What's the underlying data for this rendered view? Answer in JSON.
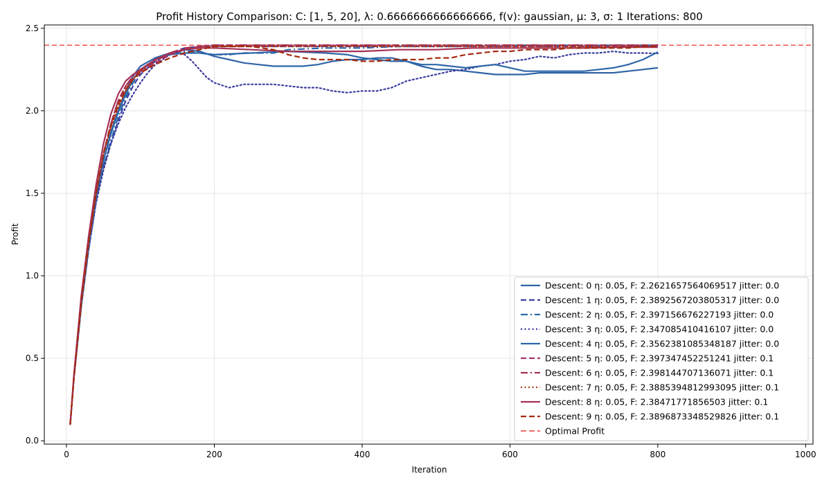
{
  "chart_data": {
    "type": "line",
    "title": "Profit History Comparison: C: [1, 5, 20], λ: 0.6666666666666666, f(v): gaussian, μ: 3, σ: 1 Iterations: 800",
    "xlabel": "Iteration",
    "ylabel": "Profit",
    "xlim": [
      -30,
      1010
    ],
    "ylim": [
      -0.02,
      2.52
    ],
    "xticks": [
      0,
      200,
      400,
      600,
      800,
      1000
    ],
    "yticks": [
      0.0,
      0.5,
      1.0,
      1.5,
      2.0,
      2.5
    ],
    "xtick_labels": [
      "0",
      "200",
      "400",
      "600",
      "800",
      "1000"
    ],
    "ytick_labels": [
      "0.0",
      "0.5",
      "1.0",
      "1.5",
      "2.0",
      "2.5"
    ],
    "grid": true,
    "legend_position": "lower-right",
    "reference_line": {
      "label": "Optimal Profit",
      "y": 2.397,
      "color": "#e8413b",
      "style": "dashed"
    },
    "series": [
      {
        "name": "Descent: 0 η: 0.05, F: 2.2621657564069517 jitter: 0.0",
        "color": "#2f63a8",
        "style": "solid",
        "x": [
          5,
          10,
          20,
          30,
          40,
          50,
          60,
          70,
          80,
          90,
          100,
          120,
          140,
          160,
          180,
          200,
          220,
          240,
          260,
          280,
          300,
          320,
          340,
          360,
          380,
          400,
          420,
          440,
          460,
          480,
          500,
          520,
          540,
          560,
          580,
          600,
          620,
          640,
          660,
          680,
          700,
          720,
          740,
          760,
          780,
          800
        ],
        "y": [
          0.1,
          0.38,
          0.82,
          1.18,
          1.48,
          1.7,
          1.87,
          2.0,
          2.12,
          2.21,
          2.27,
          2.32,
          2.35,
          2.37,
          2.36,
          2.33,
          2.31,
          2.29,
          2.28,
          2.27,
          2.27,
          2.27,
          2.28,
          2.3,
          2.31,
          2.31,
          2.32,
          2.32,
          2.3,
          2.27,
          2.25,
          2.25,
          2.24,
          2.23,
          2.22,
          2.22,
          2.22,
          2.23,
          2.23,
          2.23,
          2.23,
          2.23,
          2.23,
          2.24,
          2.25,
          2.26
        ]
      },
      {
        "name": "Descent: 1 η: 0.05, F: 2.3892567203805317 jitter: 0.0",
        "color": "#3a3fa3",
        "style": "dashed",
        "x": [
          5,
          10,
          20,
          30,
          40,
          50,
          60,
          70,
          80,
          90,
          100,
          120,
          140,
          160,
          180,
          200,
          250,
          300,
          350,
          400,
          450,
          500,
          550,
          600,
          650,
          700,
          750,
          800
        ],
        "y": [
          0.1,
          0.38,
          0.82,
          1.16,
          1.45,
          1.66,
          1.8,
          1.94,
          2.06,
          2.15,
          2.22,
          2.3,
          2.35,
          2.38,
          2.39,
          2.39,
          2.39,
          2.39,
          2.39,
          2.39,
          2.39,
          2.39,
          2.39,
          2.39,
          2.39,
          2.39,
          2.39,
          2.389
        ]
      },
      {
        "name": "Descent: 2 η: 0.05, F: 2.397156676227193 jitter: 0.0",
        "color": "#2e6aa8",
        "style": "dashdot",
        "x": [
          5,
          10,
          20,
          30,
          40,
          50,
          60,
          70,
          80,
          90,
          100,
          120,
          140,
          160,
          180,
          200,
          220,
          240,
          260,
          280,
          300,
          350,
          400,
          450,
          500,
          550,
          600,
          650,
          700,
          750,
          800
        ],
        "y": [
          0.1,
          0.38,
          0.82,
          1.16,
          1.45,
          1.66,
          1.82,
          1.96,
          2.08,
          2.17,
          2.24,
          2.31,
          2.35,
          2.36,
          2.35,
          2.34,
          2.34,
          2.35,
          2.35,
          2.35,
          2.37,
          2.38,
          2.38,
          2.39,
          2.39,
          2.39,
          2.397,
          2.397,
          2.397,
          2.397,
          2.397
        ]
      },
      {
        "name": "Descent: 3 η: 0.05, F: 2.347085410416107 jitter: 0.0",
        "color": "#3a3a9e",
        "style": "dotted",
        "x": [
          5,
          10,
          20,
          30,
          40,
          50,
          60,
          70,
          80,
          90,
          100,
          110,
          120,
          140,
          150,
          160,
          170,
          180,
          190,
          200,
          220,
          240,
          260,
          280,
          300,
          320,
          340,
          360,
          380,
          400,
          420,
          440,
          460,
          480,
          500,
          520,
          540,
          560,
          580,
          600,
          620,
          640,
          660,
          680,
          700,
          720,
          740,
          760,
          780,
          800
        ],
        "y": [
          0.1,
          0.38,
          0.82,
          1.16,
          1.44,
          1.64,
          1.8,
          1.92,
          2.02,
          2.1,
          2.17,
          2.23,
          2.28,
          2.34,
          2.35,
          2.34,
          2.3,
          2.25,
          2.2,
          2.17,
          2.14,
          2.16,
          2.16,
          2.16,
          2.15,
          2.14,
          2.14,
          2.12,
          2.11,
          2.12,
          2.12,
          2.14,
          2.18,
          2.2,
          2.22,
          2.24,
          2.25,
          2.27,
          2.28,
          2.3,
          2.31,
          2.33,
          2.32,
          2.34,
          2.35,
          2.35,
          2.36,
          2.35,
          2.35,
          2.347
        ]
      },
      {
        "name": "Descent: 4 η: 0.05, F: 2.3562381085348187 jitter: 0.0",
        "color": "#2c66a6",
        "style": "solid",
        "x": [
          5,
          10,
          20,
          30,
          40,
          50,
          60,
          70,
          80,
          90,
          100,
          120,
          140,
          160,
          180,
          200,
          250,
          300,
          350,
          380,
          400,
          420,
          440,
          460,
          480,
          500,
          520,
          540,
          560,
          580,
          600,
          620,
          640,
          660,
          680,
          700,
          720,
          740,
          760,
          780,
          800
        ],
        "y": [
          0.1,
          0.38,
          0.82,
          1.17,
          1.47,
          1.7,
          1.86,
          1.99,
          2.1,
          2.19,
          2.25,
          2.31,
          2.34,
          2.35,
          2.35,
          2.34,
          2.35,
          2.36,
          2.35,
          2.34,
          2.32,
          2.31,
          2.3,
          2.3,
          2.28,
          2.28,
          2.27,
          2.26,
          2.27,
          2.28,
          2.26,
          2.24,
          2.24,
          2.24,
          2.24,
          2.24,
          2.25,
          2.26,
          2.28,
          2.31,
          2.356
        ]
      },
      {
        "name": "Descent: 5 η: 0.05, F: 2.397347452251241 jitter: 0.1",
        "color": "#a8336a",
        "style": "dashed",
        "x": [
          5,
          10,
          20,
          30,
          40,
          50,
          60,
          70,
          80,
          90,
          100,
          120,
          140,
          160,
          180,
          200,
          300,
          400,
          500,
          600,
          700,
          800
        ],
        "y": [
          0.1,
          0.38,
          0.84,
          1.2,
          1.5,
          1.74,
          1.92,
          2.06,
          2.15,
          2.2,
          2.23,
          2.29,
          2.34,
          2.37,
          2.39,
          2.397,
          2.397,
          2.397,
          2.397,
          2.397,
          2.397,
          2.397
        ]
      },
      {
        "name": "Descent: 6 η: 0.05, F: 2.398144707136071 jitter: 0.1",
        "color": "#a5304f",
        "style": "dashdot",
        "x": [
          5,
          10,
          20,
          30,
          40,
          50,
          60,
          70,
          80,
          90,
          100,
          120,
          140,
          160,
          180,
          200,
          300,
          400,
          500,
          600,
          700,
          800
        ],
        "y": [
          0.1,
          0.38,
          0.84,
          1.2,
          1.5,
          1.74,
          1.92,
          2.06,
          2.15,
          2.21,
          2.24,
          2.3,
          2.35,
          2.38,
          2.39,
          2.398,
          2.398,
          2.398,
          2.398,
          2.398,
          2.398,
          2.398
        ]
      },
      {
        "name": "Descent: 7 η: 0.05, F: 2.3885394812993095 jitter: 0.1",
        "color": "#b03a1e",
        "style": "dotted",
        "x": [
          5,
          10,
          20,
          30,
          40,
          50,
          60,
          70,
          80,
          90,
          100,
          120,
          140,
          160,
          180,
          200,
          300,
          400,
          500,
          600,
          700,
          800
        ],
        "y": [
          0.1,
          0.38,
          0.84,
          1.2,
          1.5,
          1.74,
          1.9,
          2.02,
          2.12,
          2.19,
          2.24,
          2.31,
          2.35,
          2.37,
          2.38,
          2.39,
          2.39,
          2.39,
          2.39,
          2.39,
          2.39,
          2.389
        ]
      },
      {
        "name": "Descent: 8 η: 0.05, F: 2.38471771856503 jitter: 0.1",
        "color": "#a53155",
        "style": "solid",
        "x": [
          5,
          10,
          20,
          30,
          40,
          50,
          60,
          70,
          80,
          90,
          100,
          120,
          140,
          160,
          180,
          200,
          250,
          300,
          350,
          400,
          450,
          500,
          550,
          600,
          650,
          700,
          750,
          800
        ],
        "y": [
          0.1,
          0.4,
          0.88,
          1.24,
          1.55,
          1.8,
          1.98,
          2.1,
          2.18,
          2.22,
          2.25,
          2.31,
          2.35,
          2.37,
          2.38,
          2.38,
          2.37,
          2.36,
          2.36,
          2.36,
          2.37,
          2.37,
          2.38,
          2.38,
          2.38,
          2.38,
          2.385,
          2.385
        ]
      },
      {
        "name": "Descent: 9 η: 0.05, F: 2.3896873348529826 jitter: 0.1",
        "color": "#a52a0e",
        "style": "dashed",
        "x": [
          5,
          10,
          20,
          30,
          40,
          50,
          60,
          70,
          80,
          90,
          100,
          120,
          140,
          160,
          180,
          200,
          250,
          280,
          300,
          320,
          340,
          360,
          380,
          400,
          420,
          440,
          460,
          480,
          500,
          520,
          540,
          560,
          580,
          600,
          620,
          640,
          660,
          680,
          700,
          720,
          740,
          760,
          780,
          800
        ],
        "y": [
          0.1,
          0.38,
          0.84,
          1.2,
          1.5,
          1.74,
          1.91,
          2.04,
          2.13,
          2.19,
          2.23,
          2.28,
          2.32,
          2.35,
          2.37,
          2.39,
          2.39,
          2.37,
          2.34,
          2.32,
          2.31,
          2.31,
          2.31,
          2.3,
          2.3,
          2.31,
          2.31,
          2.31,
          2.32,
          2.32,
          2.34,
          2.35,
          2.36,
          2.36,
          2.37,
          2.37,
          2.37,
          2.38,
          2.38,
          2.38,
          2.38,
          2.38,
          2.39,
          2.39
        ]
      }
    ]
  }
}
